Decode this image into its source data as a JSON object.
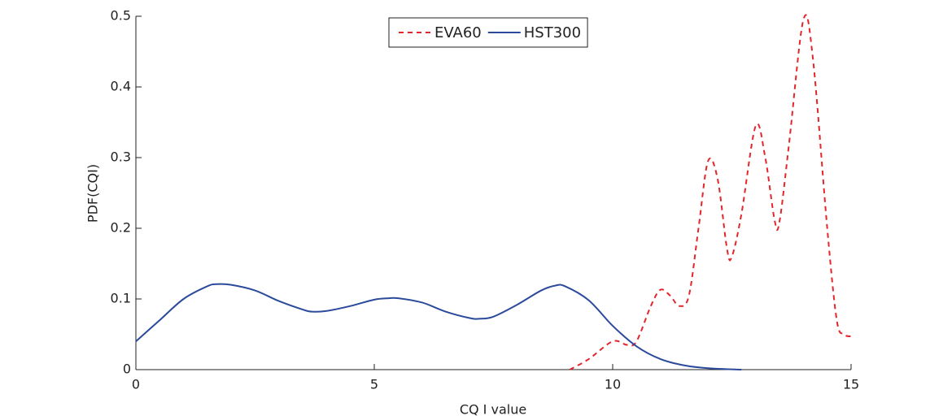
{
  "chart_data": {
    "type": "line",
    "x_label": "CQ I value",
    "y_label": "PDF(CQI)",
    "xlim": [
      0,
      15
    ],
    "ylim": [
      0,
      0.5
    ],
    "xticks": [
      0,
      5,
      10,
      15
    ],
    "yticks": [
      0,
      0.1,
      0.2,
      0.3,
      0.4,
      0.5
    ],
    "legend": "upper center",
    "series": [
      {
        "name": "EVA60",
        "color": "#e3262b",
        "dash": true,
        "x": [
          9.1,
          9.5,
          10,
          10.3,
          10.5,
          10.8,
          11,
          11.2,
          11.4,
          11.6,
          11.8,
          12,
          12.2,
          12.4,
          12.5,
          12.7,
          13,
          13.2,
          13.4,
          13.5,
          13.7,
          14,
          14.2,
          14.5,
          14.7,
          14.85,
          15
        ],
        "values": [
          0,
          0.015,
          0.04,
          0.035,
          0.04,
          0.09,
          0.113,
          0.105,
          0.09,
          0.105,
          0.2,
          0.295,
          0.27,
          0.17,
          0.16,
          0.22,
          0.345,
          0.3,
          0.21,
          0.21,
          0.32,
          0.495,
          0.44,
          0.2,
          0.07,
          0.05,
          0.047
        ]
      },
      {
        "name": "HST300",
        "color": "#2b4a9b",
        "dash": false,
        "x": [
          0,
          0.5,
          1,
          1.5,
          1.7,
          2,
          2.5,
          3,
          3.5,
          3.7,
          4,
          4.5,
          5,
          5.3,
          5.5,
          6,
          6.5,
          7,
          7.2,
          7.5,
          8,
          8.5,
          8.8,
          9,
          9.5,
          10,
          10.5,
          11,
          11.5,
          12,
          12.7
        ],
        "values": [
          0.04,
          0.07,
          0.1,
          0.118,
          0.121,
          0.12,
          0.112,
          0.097,
          0.085,
          0.082,
          0.083,
          0.09,
          0.099,
          0.101,
          0.101,
          0.095,
          0.082,
          0.073,
          0.072,
          0.075,
          0.092,
          0.112,
          0.119,
          0.118,
          0.098,
          0.062,
          0.033,
          0.015,
          0.006,
          0.002,
          0
        ]
      }
    ]
  }
}
